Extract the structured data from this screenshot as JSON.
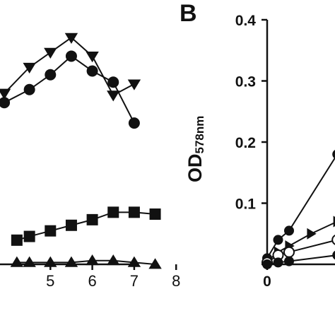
{
  "chart_data": [
    {
      "type": "line",
      "panel": "",
      "title": "",
      "xlabel": "",
      "ylabel": "",
      "xlim": [
        4,
        8
      ],
      "ylim": [
        0,
        1.4
      ],
      "x_ticks": [
        5,
        6,
        7,
        8
      ],
      "x_tick_labels": [
        "5",
        "6",
        "7",
        "8"
      ],
      "series": [
        {
          "marker": "triangle-down",
          "x": [
            3.9,
            4.5,
            5.0,
            5.5,
            6.0,
            6.5,
            7.0
          ],
          "y": [
            0.92,
            1.06,
            1.14,
            1.22,
            1.12,
            0.91,
            0.97
          ]
        },
        {
          "marker": "circle",
          "x": [
            3.9,
            4.5,
            5.0,
            5.5,
            6.0,
            6.5,
            7.0
          ],
          "y": [
            0.87,
            0.94,
            1.02,
            1.12,
            1.04,
            0.98,
            0.76
          ]
        },
        {
          "marker": "square",
          "x": [
            4.2,
            4.5,
            5.0,
            5.5,
            6.0,
            6.5,
            7.0,
            7.5
          ],
          "y": [
            0.13,
            0.15,
            0.18,
            0.21,
            0.24,
            0.28,
            0.28,
            0.27
          ]
        },
        {
          "marker": "triangle-up",
          "x": [
            4.2,
            4.5,
            5.0,
            5.5,
            6.0,
            6.5,
            7.0,
            7.5
          ],
          "y": [
            0.01,
            0.01,
            0.01,
            0.01,
            0.02,
            0.02,
            0.01,
            0.0
          ]
        }
      ]
    },
    {
      "type": "line",
      "panel": "B",
      "title": "",
      "xlabel": "",
      "ylabel": "OD",
      "ylabel_subscript": "578nm",
      "xlim": [
        0,
        3
      ],
      "ylim": [
        0,
        0.4
      ],
      "x_ticks": [
        0
      ],
      "x_tick_labels": [
        "0"
      ],
      "y_ticks": [
        0,
        0.1,
        0.2,
        0.3,
        0.4
      ],
      "y_tick_labels": [
        "",
        "0.1",
        "0.2",
        "0.3",
        "0.4"
      ],
      "series": [
        {
          "marker": "circle",
          "x": [
            0.0,
            0.25,
            0.5,
            1.6
          ],
          "y": [
            0.01,
            0.04,
            0.055,
            0.18
          ]
        },
        {
          "marker": "triangle-right",
          "x": [
            0.0,
            0.25,
            0.5,
            1.0,
            1.6
          ],
          "y": [
            0.005,
            0.02,
            0.03,
            0.05,
            0.07
          ]
        },
        {
          "marker": "open-circle",
          "x": [
            0.0,
            0.25,
            0.5,
            1.6
          ],
          "y": [
            0.003,
            0.015,
            0.02,
            0.04
          ]
        },
        {
          "marker": "circle",
          "x": [
            0.0,
            0.25,
            0.5,
            1.6
          ],
          "y": [
            0.0,
            0.003,
            0.005,
            0.015
          ]
        }
      ]
    }
  ]
}
